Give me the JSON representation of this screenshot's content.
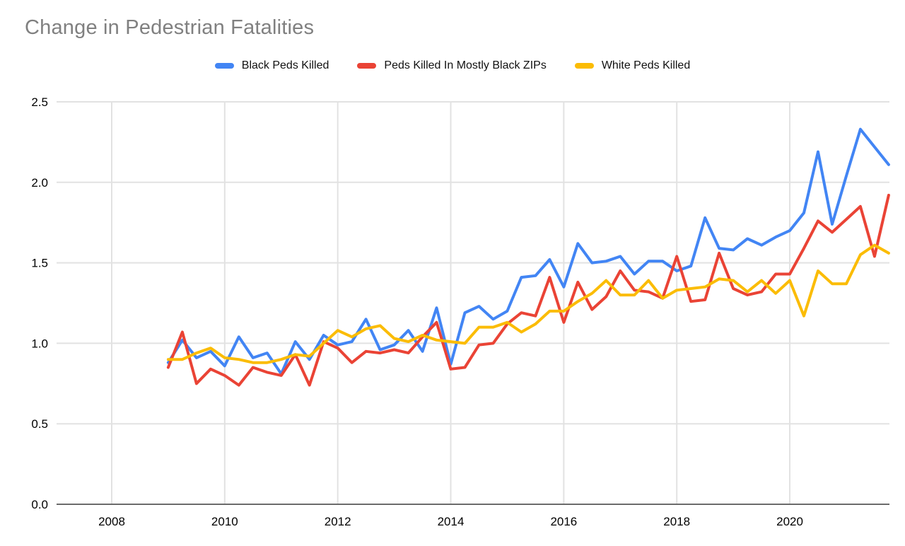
{
  "page": {
    "title": "Change in Pedestrian Fatalities"
  },
  "colors": {
    "blue": "#4285F4",
    "red": "#EA4335",
    "yellow": "#FBBC04",
    "title_gray": "#808080",
    "grid": "#e2e2e2",
    "axis": "#6b6b6b",
    "tick_label": "#000000",
    "background": "#ffffff"
  },
  "legend": [
    {
      "label": "Black Peds Killed",
      "color": "blue"
    },
    {
      "label": "Peds Killed In Mostly Black ZIPs",
      "color": "red"
    },
    {
      "label": "White Peds Killed",
      "color": "yellow"
    }
  ],
  "chart_data": {
    "type": "line",
    "title": "Change in Pedestrian Fatalities",
    "x_start_year": 2009.0,
    "x_step_years": 0.25,
    "grid": true,
    "legend_position": "top",
    "x_axis": {
      "tick_years": [
        2008,
        2010,
        2012,
        2014,
        2016,
        2018,
        2020
      ],
      "tick_labels": [
        "2008",
        "2010",
        "2012",
        "2014",
        "2016",
        "2018",
        "2020"
      ]
    },
    "y_axis": {
      "min": 0.0,
      "max": 2.5,
      "tick_values": [
        0.0,
        0.5,
        1.0,
        1.5,
        2.0,
        2.5
      ],
      "tick_labels": [
        "0.0",
        "0.5",
        "1.0",
        "1.5",
        "2.0",
        "2.5"
      ]
    },
    "series": [
      {
        "name": "Black Peds Killed",
        "color": "blue",
        "values": [
          0.88,
          1.02,
          0.91,
          0.95,
          0.86,
          1.04,
          0.91,
          0.94,
          0.81,
          1.01,
          0.9,
          1.05,
          0.99,
          1.01,
          1.15,
          0.96,
          0.99,
          1.08,
          0.95,
          1.22,
          0.87,
          1.19,
          1.23,
          1.15,
          1.2,
          1.41,
          1.42,
          1.52,
          1.35,
          1.62,
          1.5,
          1.51,
          1.54,
          1.43,
          1.51,
          1.51,
          1.45,
          1.48,
          1.78,
          1.59,
          1.58,
          1.65,
          1.61,
          1.66,
          1.7,
          1.81,
          2.19,
          1.74,
          2.04,
          2.33,
          2.22,
          2.11
        ]
      },
      {
        "name": "Peds Killed In Mostly Black ZIPs",
        "color": "red",
        "values": [
          0.85,
          1.07,
          0.75,
          0.84,
          0.8,
          0.74,
          0.85,
          0.82,
          0.8,
          0.93,
          0.74,
          1.01,
          0.97,
          0.88,
          0.95,
          0.94,
          0.96,
          0.94,
          1.04,
          1.13,
          0.84,
          0.85,
          0.99,
          1.0,
          1.12,
          1.19,
          1.17,
          1.41,
          1.13,
          1.38,
          1.21,
          1.29,
          1.45,
          1.33,
          1.32,
          1.28,
          1.54,
          1.26,
          1.27,
          1.56,
          1.34,
          1.3,
          1.32,
          1.43,
          1.43,
          1.59,
          1.76,
          1.69,
          1.77,
          1.85,
          1.54,
          1.92
        ]
      },
      {
        "name": "White Peds Killed",
        "color": "yellow",
        "values": [
          0.9,
          0.9,
          0.94,
          0.97,
          0.91,
          0.9,
          0.88,
          0.88,
          0.9,
          0.93,
          0.92,
          1.0,
          1.08,
          1.04,
          1.09,
          1.11,
          1.03,
          1.01,
          1.05,
          1.02,
          1.01,
          1.0,
          1.1,
          1.1,
          1.13,
          1.07,
          1.12,
          1.2,
          1.2,
          1.26,
          1.31,
          1.39,
          1.3,
          1.3,
          1.39,
          1.28,
          1.33,
          1.34,
          1.35,
          1.4,
          1.39,
          1.32,
          1.39,
          1.31,
          1.39,
          1.17,
          1.45,
          1.37,
          1.37,
          1.55,
          1.61,
          1.56
        ]
      }
    ]
  }
}
